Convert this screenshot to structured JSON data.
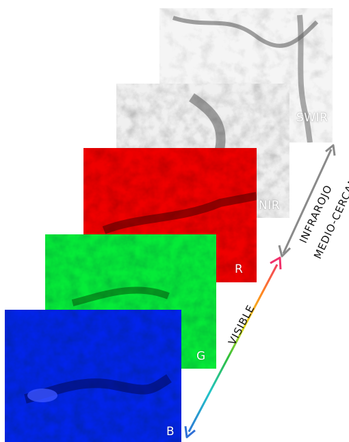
{
  "bands": {
    "swir": {
      "label": "SWIR",
      "color": "#9a9a9a"
    },
    "nir": {
      "label": "NIR",
      "color": "#7d7d7d"
    },
    "r": {
      "label": "R",
      "color": "#c40000"
    },
    "g": {
      "label": "G",
      "color": "#1aa61a"
    },
    "b": {
      "label": "B",
      "color": "#0a18a8"
    }
  },
  "axis": {
    "visible_label": "VISIBLE",
    "infrared_line1": "INFRAROJO",
    "infrared_line2": "MEDIO-CERCANO",
    "infrared_color": "#8a8a8a"
  }
}
